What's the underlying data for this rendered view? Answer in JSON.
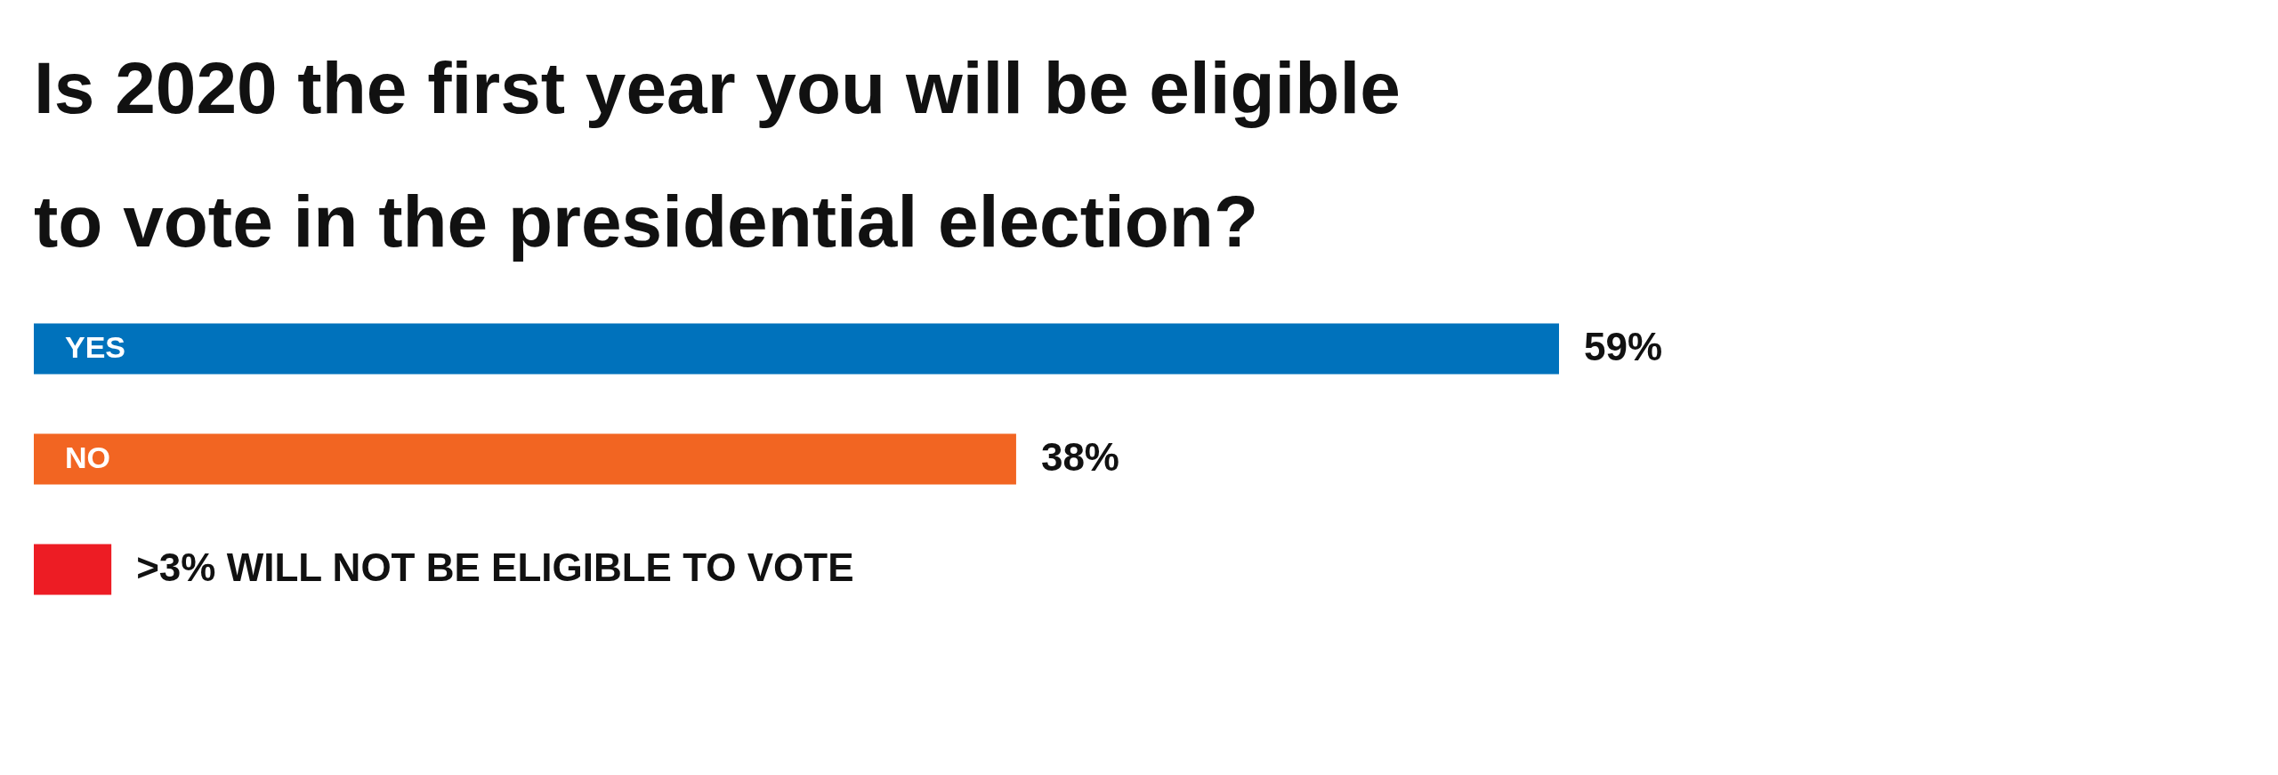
{
  "chart_data": {
    "type": "bar",
    "orientation": "horizontal",
    "title": "Is 2020 the first year you will be eligible to vote in the presidential election?",
    "categories": [
      "YES",
      "NO",
      null
    ],
    "values": [
      59,
      38,
      3
    ],
    "colors": [
      "#0072bc",
      "#f26522",
      "#ed1c24"
    ],
    "value_labels": [
      "59%",
      "38%",
      ">3% WILL NOT BE ELIGIBLE TO VOTE"
    ]
  }
}
